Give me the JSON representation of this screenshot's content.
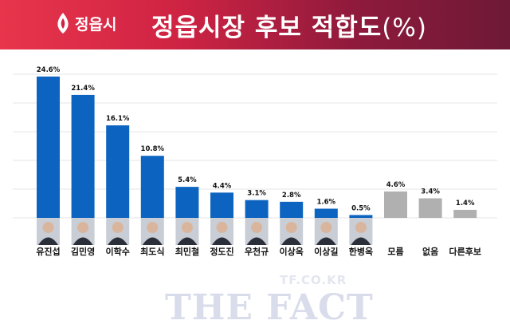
{
  "header": {
    "logo_text": "정읍시",
    "title": "정읍시장 후보 적합도",
    "unit": "(%)"
  },
  "watermark": {
    "url": "TF.CO.KR",
    "brand": "THE FACT"
  },
  "colors": {
    "candidate_bar": "#0d64c0",
    "other_bar": "#b0b0b0",
    "header_start": "#e8354c",
    "header_end": "#6e1936"
  },
  "chart_data": {
    "type": "bar",
    "categories": [
      "유진섭",
      "김민영",
      "이학수",
      "최도식",
      "최민철",
      "정도진",
      "우천규",
      "이상옥",
      "이상길",
      "한병옥",
      "모름",
      "없음",
      "다른후보"
    ],
    "values": [
      24.6,
      21.4,
      16.1,
      10.8,
      5.4,
      4.4,
      3.1,
      2.8,
      1.6,
      0.5,
      4.6,
      3.4,
      1.4
    ],
    "labels": [
      "24.6%",
      "21.4%",
      "16.1%",
      "10.8%",
      "5.4%",
      "4.4%",
      "3.1%",
      "2.8%",
      "1.6%",
      "0.5%",
      "4.6%",
      "3.4%",
      "1.4%"
    ],
    "has_photo": [
      true,
      true,
      true,
      true,
      true,
      true,
      true,
      true,
      true,
      true,
      false,
      false,
      false
    ],
    "ylim": [
      0,
      25
    ],
    "grid": true,
    "legend": "none"
  }
}
